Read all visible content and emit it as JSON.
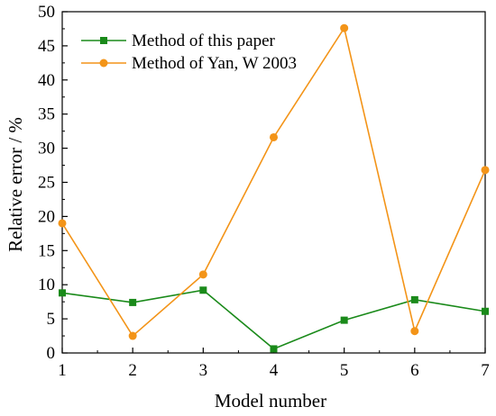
{
  "chart_data": {
    "type": "line",
    "xlabel": "Model number",
    "ylabel": "Relative error / %",
    "xlim": [
      1,
      7
    ],
    "ylim": [
      0,
      50
    ],
    "x_ticks": [
      1,
      2,
      3,
      4,
      5,
      6,
      7
    ],
    "y_ticks": [
      0,
      5,
      10,
      15,
      20,
      25,
      30,
      35,
      40,
      45,
      50
    ],
    "grid": false,
    "legend_position": "top-left",
    "x": [
      1,
      2,
      3,
      4,
      5,
      6,
      7
    ],
    "series": [
      {
        "name": "Method of this paper",
        "color": "#1a8a1a",
        "marker": "square",
        "values": [
          8.8,
          7.4,
          9.2,
          0.6,
          4.8,
          7.8,
          6.1
        ]
      },
      {
        "name": "Method of Yan, W 2003",
        "color": "#f39418",
        "marker": "circle",
        "values": [
          19.0,
          2.5,
          11.5,
          31.6,
          47.6,
          3.2,
          26.8
        ]
      }
    ]
  }
}
